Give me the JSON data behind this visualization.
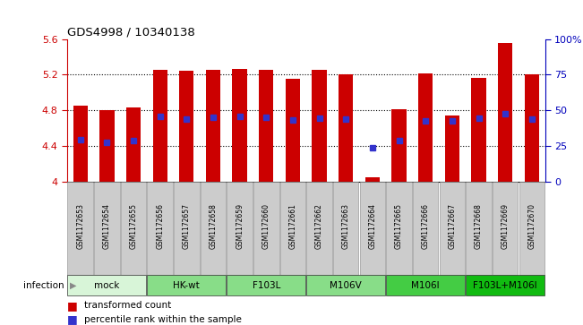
{
  "title": "GDS4998 / 10340138",
  "samples": [
    "GSM1172653",
    "GSM1172654",
    "GSM1172655",
    "GSM1172656",
    "GSM1172657",
    "GSM1172658",
    "GSM1172659",
    "GSM1172660",
    "GSM1172661",
    "GSM1172662",
    "GSM1172663",
    "GSM1172664",
    "GSM1172665",
    "GSM1172666",
    "GSM1172667",
    "GSM1172668",
    "GSM1172669",
    "GSM1172670"
  ],
  "bar_tops": [
    4.85,
    4.8,
    4.83,
    5.25,
    5.24,
    5.26,
    5.27,
    5.26,
    5.15,
    5.25,
    5.2,
    4.05,
    4.81,
    5.21,
    4.74,
    5.16,
    5.56,
    5.2
  ],
  "blue_markers": [
    4.47,
    4.44,
    4.46,
    4.73,
    4.7,
    4.72,
    4.73,
    4.72,
    4.69,
    4.71,
    4.7,
    4.38,
    4.46,
    4.68,
    4.68,
    4.71,
    4.76,
    4.7
  ],
  "ymin": 4.0,
  "ymax": 5.6,
  "yticks": [
    4.0,
    4.4,
    4.8,
    5.2,
    5.6
  ],
  "ytick_labels": [
    "4",
    "4.4",
    "4.8",
    "5.2",
    "5.6"
  ],
  "y2ticks": [
    0,
    25,
    50,
    75,
    100
  ],
  "y2tick_labels": [
    "0",
    "25",
    "50",
    "75",
    "100%"
  ],
  "bar_color": "#cc0000",
  "blue_color": "#3333cc",
  "bar_width": 0.55,
  "groups": [
    {
      "label": "mock",
      "start": 0,
      "end": 2,
      "color": "#d8f5d8"
    },
    {
      "label": "HK-wt",
      "start": 3,
      "end": 5,
      "color": "#88dd88"
    },
    {
      "label": "F103L",
      "start": 6,
      "end": 8,
      "color": "#88dd88"
    },
    {
      "label": "M106V",
      "start": 9,
      "end": 11,
      "color": "#88dd88"
    },
    {
      "label": "M106I",
      "start": 12,
      "end": 14,
      "color": "#44cc44"
    },
    {
      "label": "F103L+M106I",
      "start": 15,
      "end": 17,
      "color": "#11bb11"
    }
  ],
  "infection_label": "infection",
  "left_axis_color": "#cc0000",
  "right_axis_color": "#0000bb",
  "gray_box_color": "#cccccc",
  "grid_color": "#000000"
}
